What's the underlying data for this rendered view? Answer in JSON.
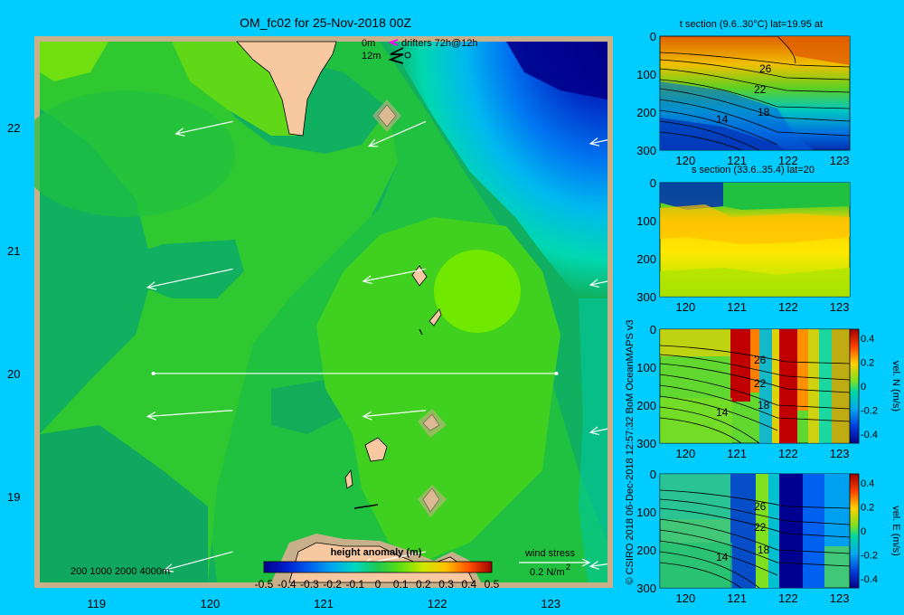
{
  "page": {
    "title": "OM_fc02 for 25-Nov-2018 00Z",
    "copyright": "© CSIRO 2018   06-Dec-2018 12:57:32 BoM OceanMAPS v3",
    "background": "#00ccff"
  },
  "map": {
    "x_ticks": [
      "119",
      "120",
      "121",
      "122",
      "123"
    ],
    "y_ticks": [
      "22",
      "21",
      "20",
      "19"
    ],
    "legend_top": {
      "line1_left": "0m",
      "line1_right": "drifters 72h@12h",
      "line2_left": "12m"
    },
    "depth_legend": "200  1000  2000  4000m",
    "wind_stress": {
      "label": "wind stress",
      "value": "0.2 N/m",
      "exponent": "2"
    },
    "colorbar": {
      "title": "height anomaly (m)",
      "ticks": [
        "-0.5",
        "-0.4",
        "-0.3",
        "-0.2",
        "-0.1",
        "0",
        "0.1",
        "0.2",
        "0.3",
        "0.4",
        "0.5"
      ],
      "colors": [
        "#00008b",
        "#0010c8",
        "#0050e8",
        "#0090f0",
        "#00c8e0",
        "#00d8a8",
        "#10c060",
        "#40d820",
        "#a0e000",
        "#ffe000",
        "#ff9000",
        "#ff3000",
        "#a00000"
      ]
    }
  },
  "sections": [
    {
      "title": "t section (9.6..30°C) lat=19.95 at",
      "x_ticks": [
        "120",
        "121",
        "122",
        "123"
      ],
      "y_ticks": [
        "0",
        "100",
        "200",
        "300"
      ],
      "contour_labels": [
        "26",
        "22",
        "18",
        "14"
      ]
    },
    {
      "title": "s section (33.6..35.4) lat=20",
      "x_ticks": [
        "120",
        "121",
        "122",
        "123"
      ],
      "y_ticks": [
        "0",
        "100",
        "200",
        "300"
      ],
      "contour_labels": []
    },
    {
      "title": "",
      "x_ticks": [
        "120",
        "121",
        "122",
        "123"
      ],
      "y_ticks": [
        "0",
        "100",
        "200",
        "300"
      ],
      "contour_labels": [
        "26",
        "22",
        "18",
        "14"
      ],
      "colorbar": {
        "label": "vel. N (m/s)",
        "ticks": [
          "0.4",
          "0.2",
          "0",
          "-0.2",
          "-0.4"
        ]
      }
    },
    {
      "title": "",
      "x_ticks": [
        "120",
        "121",
        "122",
        "123"
      ],
      "y_ticks": [
        "0",
        "100",
        "200",
        "300"
      ],
      "contour_labels": [
        "26",
        "22",
        "18",
        "14"
      ],
      "colorbar": {
        "label": "vel. E (m/s)",
        "ticks": [
          "0.4",
          "0.2",
          "0",
          "-0.2",
          "-0.4"
        ]
      }
    }
  ],
  "chart_data": [
    {
      "type": "heatmap",
      "title": "OM_fc02 for 25-Nov-2018 00Z",
      "variable": "height anomaly (m)",
      "xlim": [
        118.5,
        123.5
      ],
      "ylim": [
        18.3,
        22.7
      ],
      "color_range": [
        -0.5,
        0.5
      ],
      "section_line": {
        "lat": 20,
        "lon_start": 119.5,
        "lon_end": 123.05
      },
      "wind_arrows": [
        {
          "lon": 120.2,
          "lat": 22.05,
          "dlon": -0.5,
          "dlat": -0.1
        },
        {
          "lon": 121.9,
          "lat": 22.05,
          "dlon": -0.5,
          "dlat": -0.2
        },
        {
          "lon": 123.5,
          "lat": 21.9,
          "dlon": -0.15,
          "dlat": -0.03
        },
        {
          "lon": 120.2,
          "lat": 20.85,
          "dlon": -0.75,
          "dlat": -0.15
        },
        {
          "lon": 121.9,
          "lat": 20.85,
          "dlon": -0.55,
          "dlat": -0.1
        },
        {
          "lon": 123.5,
          "lat": 20.75,
          "dlon": -0.15,
          "dlat": -0.03
        },
        {
          "lon": 120.2,
          "lat": 19.7,
          "dlon": -0.75,
          "dlat": -0.05
        },
        {
          "lon": 121.9,
          "lat": 19.7,
          "dlon": -0.55,
          "dlat": -0.05
        },
        {
          "lon": 123.5,
          "lat": 19.55,
          "dlon": -0.15,
          "dlat": -0.03
        },
        {
          "lon": 120.2,
          "lat": 18.55,
          "dlon": -0.6,
          "dlat": -0.15
        },
        {
          "lon": 121.9,
          "lat": 18.55,
          "dlon": -0.55,
          "dlat": -0.1
        },
        {
          "lon": 123.5,
          "lat": 18.45,
          "dlon": -0.15,
          "dlat": -0.02
        }
      ]
    },
    {
      "type": "heatmap",
      "title": "t section (9.6..30°C) lat=19.95 at",
      "xlim": [
        119.5,
        123.2
      ],
      "ylim": [
        300,
        0
      ],
      "contours": [
        26,
        22,
        18,
        14
      ]
    },
    {
      "type": "heatmap",
      "title": "s section (33.6..35.4) lat=20",
      "xlim": [
        119.5,
        123.2
      ],
      "ylim": [
        300,
        0
      ]
    },
    {
      "type": "heatmap",
      "variable": "vel. N (m/s)",
      "xlim": [
        119.5,
        123.2
      ],
      "ylim": [
        300,
        0
      ],
      "color_range": [
        -0.4,
        0.4
      ],
      "contours": [
        26,
        22,
        18,
        14
      ]
    },
    {
      "type": "heatmap",
      "variable": "vel. E (m/s)",
      "xlim": [
        119.5,
        123.2
      ],
      "ylim": [
        300,
        0
      ],
      "color_range": [
        -0.4,
        0.4
      ],
      "contours": [
        26,
        22,
        18,
        14
      ]
    }
  ]
}
